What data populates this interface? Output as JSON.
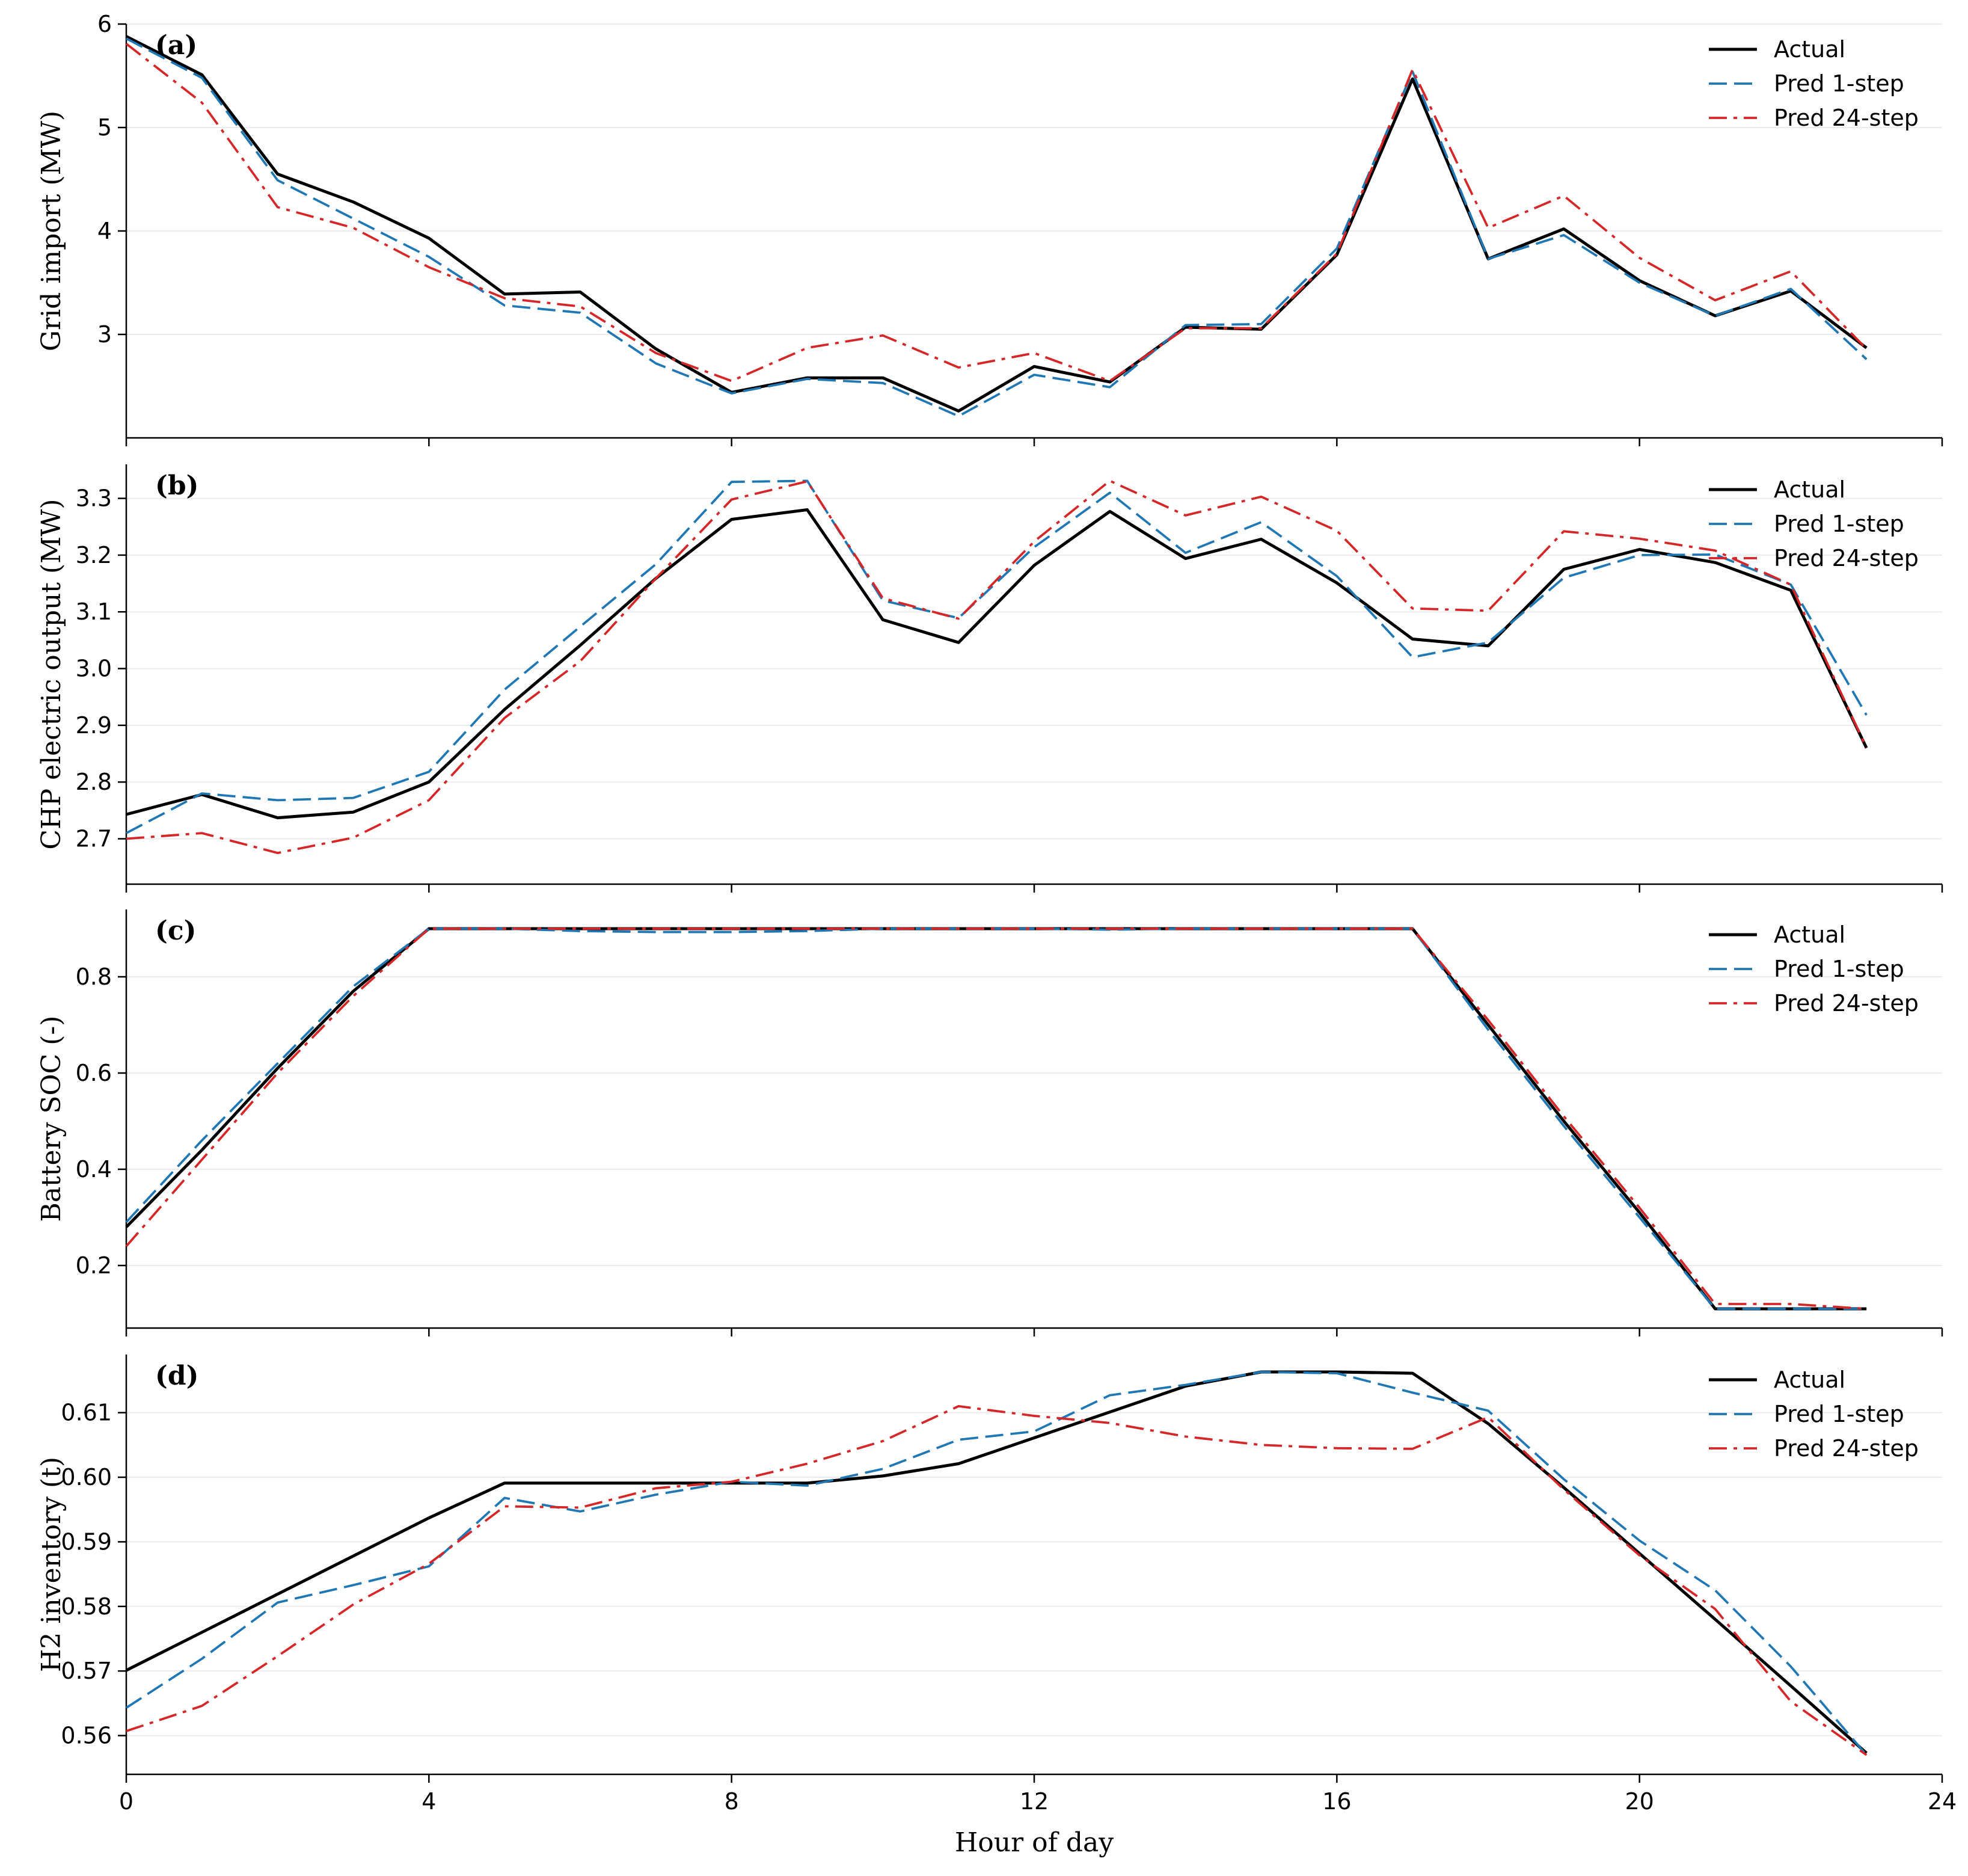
{
  "chart_data": [
    {
      "type": "line",
      "panel_label": "(a)",
      "title": "",
      "xlabel": "",
      "ylabel": "Grid import (MW)",
      "xlim": [
        0,
        24
      ],
      "ylim": [
        2.0,
        6.0
      ],
      "xticks": [
        0,
        4,
        8,
        12,
        16,
        20,
        24
      ],
      "yticks": [
        3,
        4,
        5,
        6
      ],
      "show_x_tick_labels": false,
      "grid": "horizontal-faint",
      "legend_position": "top-right",
      "x": [
        0,
        1,
        2,
        3,
        4,
        5,
        6,
        7,
        8,
        9,
        10,
        11,
        12,
        13,
        14,
        15,
        16,
        17,
        18,
        19,
        20,
        21,
        22,
        23
      ],
      "series": [
        {
          "name": "Actual",
          "color": "#000000",
          "dash": "solid",
          "values": [
            5.88,
            5.51,
            4.55,
            4.28,
            3.93,
            3.39,
            3.41,
            2.86,
            2.44,
            2.58,
            2.58,
            2.26,
            2.69,
            2.54,
            3.07,
            3.05,
            3.77,
            5.47,
            3.73,
            4.02,
            3.52,
            3.18,
            3.42,
            2.87
          ]
        },
        {
          "name": "Pred 1-step",
          "color": "#1f77b4",
          "dash": "dashed",
          "values": [
            5.86,
            5.48,
            4.49,
            4.12,
            3.75,
            3.28,
            3.21,
            2.72,
            2.43,
            2.57,
            2.53,
            2.21,
            2.61,
            2.49,
            3.09,
            3.1,
            3.83,
            5.54,
            3.73,
            3.96,
            3.5,
            3.18,
            3.44,
            2.76
          ]
        },
        {
          "name": "Pred 24-step",
          "color": "#d62728",
          "dash": "dashdot",
          "values": [
            5.81,
            5.24,
            4.23,
            4.03,
            3.65,
            3.35,
            3.27,
            2.82,
            2.55,
            2.87,
            2.99,
            2.68,
            2.82,
            2.55,
            3.06,
            3.06,
            3.78,
            5.56,
            4.03,
            4.34,
            3.74,
            3.33,
            3.61,
            2.86
          ]
        }
      ]
    },
    {
      "type": "line",
      "panel_label": "(b)",
      "title": "",
      "xlabel": "",
      "ylabel": "CHP electric output (MW)",
      "xlim": [
        0,
        24
      ],
      "ylim": [
        2.62,
        3.36
      ],
      "xticks": [
        0,
        4,
        8,
        12,
        16,
        20,
        24
      ],
      "yticks": [
        2.7,
        2.8,
        2.9,
        3.0,
        3.1,
        3.2,
        3.3
      ],
      "ytick_decimals": 1,
      "show_x_tick_labels": false,
      "grid": "horizontal-faint",
      "legend_position": "top-right",
      "x": [
        0,
        1,
        2,
        3,
        4,
        5,
        6,
        7,
        8,
        9,
        10,
        11,
        12,
        13,
        14,
        15,
        16,
        17,
        18,
        19,
        20,
        21,
        22,
        23
      ],
      "series": [
        {
          "name": "Actual",
          "color": "#000000",
          "dash": "solid",
          "values": [
            2.743,
            2.778,
            2.737,
            2.747,
            2.8,
            2.928,
            3.041,
            3.159,
            3.263,
            3.28,
            3.086,
            3.046,
            3.182,
            3.277,
            3.194,
            3.228,
            3.151,
            3.052,
            3.04,
            3.175,
            3.21,
            3.187,
            3.138,
            2.86
          ]
        },
        {
          "name": "Pred 1-step",
          "color": "#1f77b4",
          "dash": "dashed",
          "values": [
            2.71,
            2.78,
            2.768,
            2.772,
            2.818,
            2.963,
            3.074,
            3.184,
            3.329,
            3.331,
            3.12,
            3.089,
            3.214,
            3.31,
            3.204,
            3.258,
            3.163,
            3.02,
            3.046,
            3.16,
            3.2,
            3.201,
            3.148,
            2.918
          ]
        },
        {
          "name": "Pred 24-step",
          "color": "#d62728",
          "dash": "dashdot",
          "values": [
            2.7,
            2.71,
            2.675,
            2.702,
            2.768,
            2.913,
            3.013,
            3.159,
            3.298,
            3.33,
            3.124,
            3.088,
            3.224,
            3.331,
            3.27,
            3.303,
            3.243,
            3.106,
            3.102,
            3.242,
            3.229,
            3.208,
            3.148,
            2.86
          ]
        }
      ]
    },
    {
      "type": "line",
      "panel_label": "(c)",
      "title": "",
      "xlabel": "",
      "ylabel": "Battery SOC (-)",
      "xlim": [
        0,
        24
      ],
      "ylim": [
        0.07,
        0.94
      ],
      "xticks": [
        0,
        4,
        8,
        12,
        16,
        20,
        24
      ],
      "yticks": [
        0.2,
        0.4,
        0.6,
        0.8
      ],
      "ytick_decimals": 1,
      "show_x_tick_labels": false,
      "grid": "horizontal-faint",
      "legend_position": "top-right",
      "x": [
        0,
        1,
        2,
        3,
        4,
        5,
        6,
        7,
        8,
        9,
        10,
        11,
        12,
        13,
        14,
        15,
        16,
        17,
        18,
        19,
        20,
        21,
        22,
        23
      ],
      "series": [
        {
          "name": "Actual",
          "color": "#000000",
          "dash": "solid",
          "values": [
            0.28,
            0.44,
            0.61,
            0.77,
            0.9,
            0.9,
            0.9,
            0.9,
            0.9,
            0.9,
            0.9,
            0.9,
            0.9,
            0.9,
            0.9,
            0.9,
            0.9,
            0.9,
            0.7,
            0.5,
            0.31,
            0.11,
            0.11,
            0.11
          ]
        },
        {
          "name": "Pred 1-step",
          "color": "#1f77b4",
          "dash": "dashed",
          "values": [
            0.29,
            0.46,
            0.62,
            0.78,
            0.9,
            0.9,
            0.895,
            0.893,
            0.893,
            0.895,
            0.9,
            0.9,
            0.9,
            0.898,
            0.9,
            0.9,
            0.9,
            0.9,
            0.69,
            0.49,
            0.3,
            0.11,
            0.11,
            0.11
          ]
        },
        {
          "name": "Pred 24-step",
          "color": "#d62728",
          "dash": "dashdot",
          "values": [
            0.24,
            0.42,
            0.6,
            0.76,
            0.9,
            0.9,
            0.9,
            0.9,
            0.9,
            0.9,
            0.9,
            0.9,
            0.9,
            0.9,
            0.9,
            0.9,
            0.9,
            0.9,
            0.71,
            0.51,
            0.32,
            0.12,
            0.12,
            0.11
          ]
        }
      ]
    },
    {
      "type": "line",
      "panel_label": "(d)",
      "title": "",
      "xlabel": "Hour of day",
      "ylabel": "H2 inventory (t)",
      "xlim": [
        0,
        24
      ],
      "ylim": [
        0.554,
        0.619
      ],
      "xticks": [
        0,
        4,
        8,
        12,
        16,
        20,
        24
      ],
      "yticks": [
        0.56,
        0.57,
        0.58,
        0.59,
        0.6,
        0.61
      ],
      "ytick_decimals": 2,
      "show_x_tick_labels": true,
      "grid": "horizontal-faint",
      "legend_position": "top-right",
      "x": [
        0,
        1,
        2,
        3,
        4,
        5,
        6,
        7,
        8,
        9,
        10,
        11,
        12,
        13,
        14,
        15,
        16,
        17,
        18,
        19,
        20,
        21,
        22,
        23
      ],
      "series": [
        {
          "name": "Actual",
          "color": "#000000",
          "dash": "solid",
          "values": [
            0.5701,
            0.576,
            0.5819,
            0.5878,
            0.5937,
            0.5991,
            0.5991,
            0.5991,
            0.5991,
            0.5991,
            0.6002,
            0.6021,
            0.6061,
            0.6101,
            0.6141,
            0.6163,
            0.6163,
            0.6161,
            0.6083,
            0.5984,
            0.5882,
            0.578,
            0.5677,
            0.5573
          ]
        },
        {
          "name": "Pred 1-step",
          "color": "#1f77b4",
          "dash": "dashed",
          "values": [
            0.5643,
            0.5719,
            0.5806,
            0.5833,
            0.5862,
            0.5968,
            0.5947,
            0.5973,
            0.5993,
            0.5987,
            0.6013,
            0.6058,
            0.6071,
            0.6127,
            0.6143,
            0.6163,
            0.6161,
            0.6131,
            0.6103,
            0.5997,
            0.5902,
            0.5825,
            0.5707,
            0.557
          ]
        },
        {
          "name": "Pred 24-step",
          "color": "#d62728",
          "dash": "dashdot",
          "values": [
            0.5607,
            0.5646,
            0.5723,
            0.5803,
            0.5866,
            0.5955,
            0.5953,
            0.5983,
            0.5993,
            0.6021,
            0.6056,
            0.611,
            0.6095,
            0.6084,
            0.6063,
            0.605,
            0.6045,
            0.6044,
            0.6093,
            0.5981,
            0.5879,
            0.5796,
            0.5653,
            0.557
          ]
        }
      ]
    }
  ]
}
